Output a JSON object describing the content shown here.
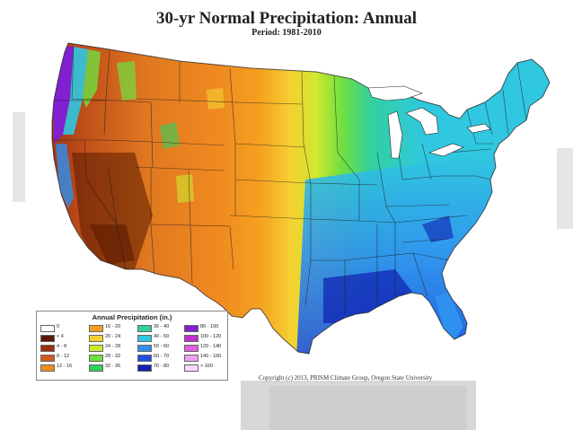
{
  "title": "30-yr Normal Precipitation: Annual",
  "period": "Period: 1981-2010",
  "copyright": "Copyright (c) 2013, PRISM Climate Group, Oregon State University",
  "legend": {
    "title": "Annual Precipitation (in.)",
    "items": [
      {
        "label": "0",
        "color": "#ffffff"
      },
      {
        "label": "< 4",
        "color": "#5a1a00"
      },
      {
        "label": "4 - 8",
        "color": "#9a3010"
      },
      {
        "label": "8 - 12",
        "color": "#d05a20"
      },
      {
        "label": "12 - 16",
        "color": "#f08a20"
      },
      {
        "label": "16 - 20",
        "color": "#f5a020"
      },
      {
        "label": "20 - 24",
        "color": "#f5d030"
      },
      {
        "label": "24 - 28",
        "color": "#d0e830"
      },
      {
        "label": "28 - 32",
        "color": "#70e040"
      },
      {
        "label": "32 - 36",
        "color": "#30d060"
      },
      {
        "label": "36 - 40",
        "color": "#30d0a0"
      },
      {
        "label": "40 - 50",
        "color": "#30c8e0"
      },
      {
        "label": "50 - 60",
        "color": "#3090f0"
      },
      {
        "label": "60 - 70",
        "color": "#2050e0"
      },
      {
        "label": "70 - 80",
        "color": "#1020b0"
      },
      {
        "label": "80 - 100",
        "color": "#8020d0"
      },
      {
        "label": "100 - 120",
        "color": "#c030d0"
      },
      {
        "label": "120 - 140",
        "color": "#e060e0"
      },
      {
        "label": "140 - 160",
        "color": "#f0a0f0"
      },
      {
        "label": "> 160",
        "color": "#fcd8fc"
      }
    ]
  }
}
